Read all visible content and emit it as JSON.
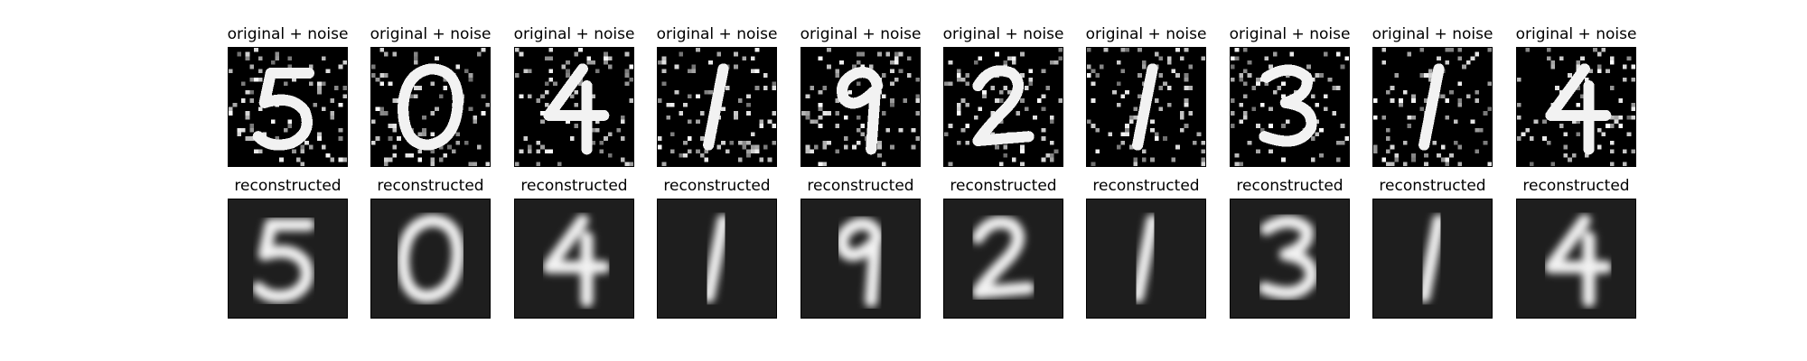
{
  "figure": {
    "rows": [
      {
        "row_name": "noisy",
        "title": "original + noise",
        "digits": [
          "5",
          "0",
          "4",
          "1",
          "9",
          "2",
          "1",
          "3",
          "1",
          "4"
        ]
      },
      {
        "row_name": "reconstructed",
        "title": "reconstructed",
        "digits": [
          "5",
          "0",
          "4",
          "1",
          "9",
          "2",
          "1",
          "3",
          "1",
          "4"
        ]
      }
    ],
    "colors": {
      "noisy_background": "#000000",
      "reconstructed_background": "#1e1e1e",
      "stroke": "#f2f2f2"
    }
  }
}
